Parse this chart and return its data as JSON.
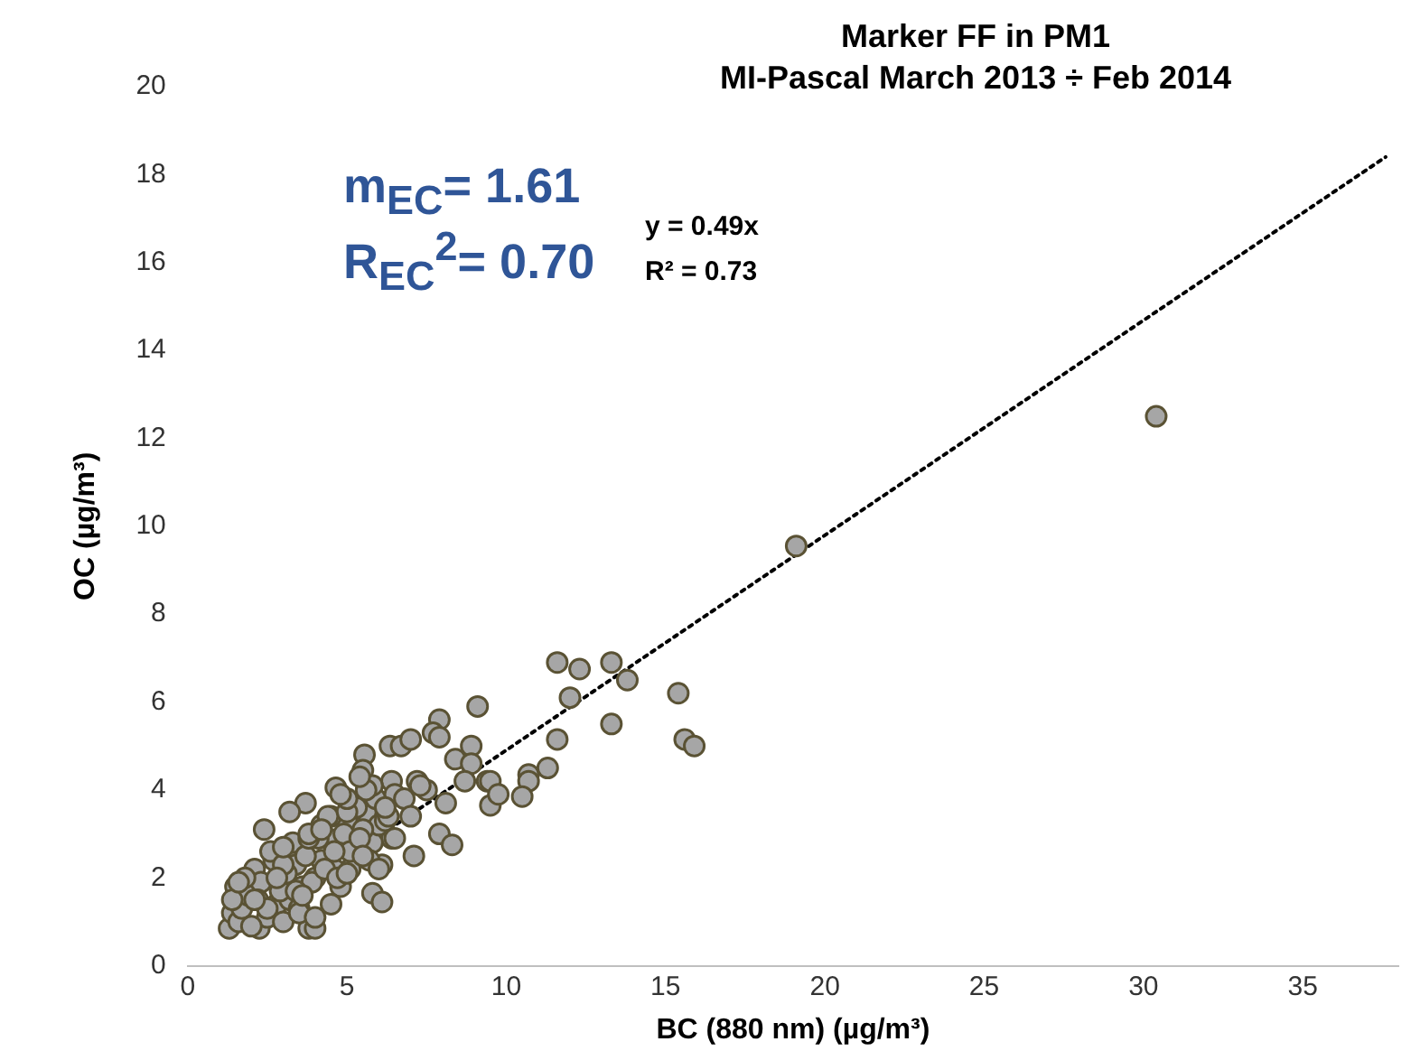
{
  "chart_data": {
    "type": "scatter",
    "title": "Marker FF in PM1",
    "subtitle": "MI-Pascal March 2013 ÷ Feb 2014",
    "xlabel": "BC (880 nm) (µg/m³)",
    "ylabel": "OC (µg/m³)",
    "xlim": [
      0,
      38
    ],
    "xticks": [
      0,
      5,
      10,
      15,
      20,
      25,
      30,
      35
    ],
    "ylim": [
      0,
      20
    ],
    "yticks": [
      0,
      2,
      4,
      6,
      8,
      10,
      12,
      14,
      16,
      18,
      20
    ],
    "grid": false,
    "legend": false,
    "marker": "circle",
    "annotations": [
      "m$_{EC}$= 1.61",
      "R$_{EC}$$^{2}$= 0.70",
      "y = 0.49x",
      "R² = 0.73"
    ],
    "series": [
      {
        "color": "#a6a6a6",
        "x": [
          30.4,
          19.1,
          11.6,
          12.3,
          13.3,
          13.8,
          12.0,
          15.4,
          13.3,
          11.6,
          15.6,
          15.9,
          11.3,
          10.7,
          10.7,
          10.5,
          9.4,
          9.5,
          9.1,
          7.9,
          7.7,
          7.9,
          6.35,
          6.7,
          7.0,
          5.55,
          5.5,
          4.65,
          3.7,
          2.4,
          8.4,
          8.9,
          8.9,
          8.7,
          9.5,
          9.75,
          7.9,
          8.3,
          7.1,
          5.8,
          6.1,
          6.4,
          7.2,
          7.5,
          8.1,
          6.4,
          6.1,
          5.1,
          4.8,
          3.8,
          4.0,
          2.25,
          1.3,
          1.4,
          1.6,
          2.8,
          3.2,
          3.4,
          3.6,
          4.0,
          4.2,
          4.4,
          4.6,
          5.0,
          5.6,
          5.8,
          6.0,
          1.5,
          1.7,
          1.9,
          2.1,
          2.3,
          2.5,
          2.7,
          2.9,
          3.1,
          3.3,
          3.5,
          3.7,
          3.9,
          4.1,
          4.3,
          4.5,
          4.7,
          4.9,
          5.1,
          5.3,
          5.5,
          5.7,
          5.9,
          6.2,
          6.5,
          1.4,
          1.8,
          2.2,
          2.6,
          3.0,
          3.4,
          3.8,
          4.2,
          4.6,
          5.0,
          5.4,
          5.8,
          6.3,
          6.8,
          7.3,
          2.0,
          2.5,
          3.0,
          3.5,
          4.0,
          4.5,
          5.0,
          5.5,
          6.0,
          6.5,
          7.0,
          3.2,
          3.8,
          4.4,
          5.0,
          5.6,
          6.2,
          4.2,
          4.8,
          5.4,
          3.0,
          2.8,
          3.6,
          1.6,
          2.1
        ],
        "values": [
          12.5,
          9.55,
          6.9,
          6.75,
          6.9,
          6.5,
          6.1,
          6.2,
          5.5,
          5.15,
          5.15,
          5.0,
          4.5,
          4.35,
          4.2,
          3.85,
          4.2,
          3.65,
          5.9,
          5.6,
          5.3,
          5.2,
          5.0,
          5.0,
          5.15,
          4.8,
          4.45,
          4.05,
          3.7,
          3.1,
          4.7,
          5.0,
          4.6,
          4.2,
          4.2,
          3.9,
          3.0,
          2.75,
          2.5,
          1.65,
          1.45,
          4.2,
          4.2,
          4.0,
          3.7,
          2.9,
          2.3,
          2.2,
          1.8,
          0.85,
          0.85,
          0.85,
          0.85,
          1.2,
          1.0,
          1.4,
          1.5,
          2.3,
          1.8,
          2.0,
          2.4,
          2.9,
          2.2,
          3.3,
          3.5,
          2.8,
          3.2,
          1.8,
          1.3,
          1.6,
          2.2,
          1.9,
          1.1,
          2.4,
          1.7,
          2.1,
          2.8,
          1.3,
          2.5,
          1.9,
          2.9,
          2.2,
          3.4,
          2.0,
          3.0,
          2.6,
          3.6,
          3.1,
          2.4,
          3.8,
          3.3,
          3.9,
          1.5,
          2.0,
          1.5,
          2.6,
          2.3,
          1.7,
          2.9,
          3.2,
          2.6,
          3.5,
          2.9,
          4.1,
          3.4,
          3.8,
          4.1,
          0.9,
          1.3,
          1.0,
          1.2,
          1.1,
          1.4,
          2.1,
          2.5,
          2.2,
          2.9,
          3.4,
          3.5,
          3.0,
          3.4,
          3.8,
          4.0,
          3.6,
          3.1,
          3.9,
          4.3,
          2.7,
          2.0,
          1.6,
          1.9,
          1.5
        ]
      },
      {
        "type": "line",
        "color": "#000000",
        "line_style": "dotted",
        "marker": "none",
        "x": [
          1.4,
          37.6
        ],
        "values": [
          0.7,
          18.4
        ]
      }
    ]
  }
}
